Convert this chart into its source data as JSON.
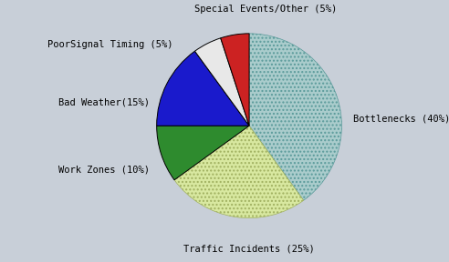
{
  "labels": [
    "Bottlenecks (40%)",
    "Traffic Incidents (25%)",
    "Work Zones (10%)",
    "Bad Weather(15%)",
    "PoorSignal Timing (5%)",
    "Special Events/Other (5%)"
  ],
  "sizes": [
    40,
    25,
    10,
    15,
    5,
    5
  ],
  "colors": [
    "#aacccc",
    "#d8e8a0",
    "#2e8b2e",
    "#1a1acc",
    "#e8e8e8",
    "#cc2222"
  ],
  "startangle": 90,
  "background_color": "#c8cfd8",
  "figsize": [
    4.92,
    2.88
  ],
  "dpi": 100,
  "fontsize": 7.5
}
